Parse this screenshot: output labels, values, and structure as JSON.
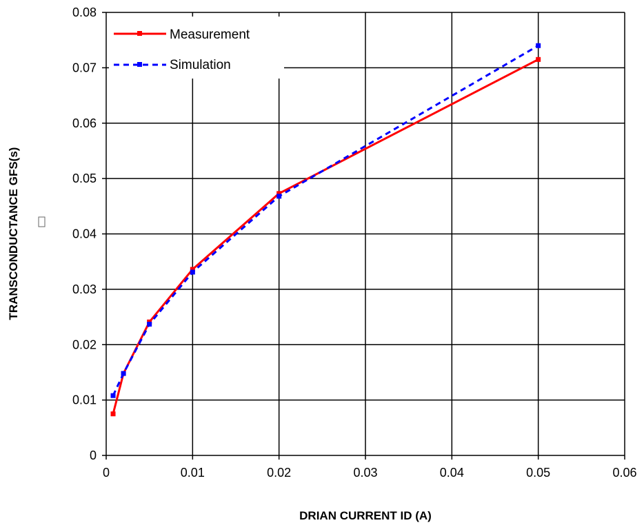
{
  "chart_data": {
    "type": "line",
    "xlabel": "DRIAN CURRENT ID (A)",
    "ylabel": "TRANSCONDUCTANCE GFS(s)",
    "xlim": [
      0,
      0.06
    ],
    "ylim": [
      0,
      0.08
    ],
    "xticks": [
      "0",
      "0.01",
      "0.02",
      "0.03",
      "0.04",
      "0.05",
      "0.06"
    ],
    "yticks": [
      "0",
      "0.01",
      "0.02",
      "0.03",
      "0.04",
      "0.05",
      "0.06",
      "0.07",
      "0.08"
    ],
    "grid": true,
    "legend_position": "top-left",
    "series": [
      {
        "name": "Measurement",
        "color": "#ff0000",
        "line_style": "solid",
        "marker": "square",
        "x": [
          0.0008,
          0.002,
          0.005,
          0.01,
          0.02,
          0.05
        ],
        "y": [
          0.0075,
          0.0148,
          0.0241,
          0.0336,
          0.0473,
          0.0715
        ]
      },
      {
        "name": "Simulation",
        "color": "#0000ff",
        "line_style": "dashed",
        "marker": "square",
        "x": [
          0.0008,
          0.002,
          0.005,
          0.01,
          0.02,
          0.05
        ],
        "y": [
          0.0108,
          0.0148,
          0.0237,
          0.0331,
          0.0468,
          0.074
        ]
      }
    ]
  }
}
